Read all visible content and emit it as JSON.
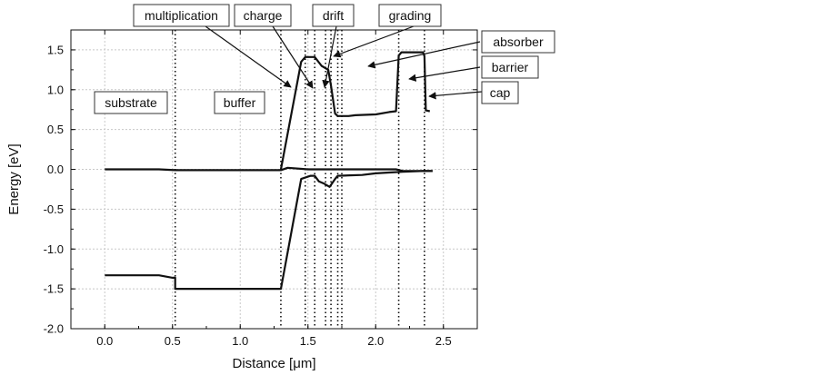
{
  "chart_data": {
    "type": "line",
    "xlabel": "Distance [μm]",
    "ylabel": "Energy [eV]",
    "xlim": [
      -0.25,
      2.75
    ],
    "ylim": [
      -2.0,
      1.75
    ],
    "grid": true,
    "x_ticks": [
      {
        "value": 0.0,
        "label": "0.0"
      },
      {
        "value": 0.5,
        "label": "0.5"
      },
      {
        "value": 1.0,
        "label": "1.0"
      },
      {
        "value": 1.5,
        "label": "1.5"
      },
      {
        "value": 2.0,
        "label": "2.0"
      },
      {
        "value": 2.5,
        "label": "2.5"
      }
    ],
    "y_ticks": [
      {
        "value": 1.5,
        "label": "1.5"
      },
      {
        "value": 1.0,
        "label": "1.0"
      },
      {
        "value": 0.5,
        "label": "0.5"
      },
      {
        "value": 0.0,
        "label": "0.0"
      },
      {
        "value": -0.5,
        "label": "-0.5"
      },
      {
        "value": -1.0,
        "label": "-1.0"
      },
      {
        "value": -1.5,
        "label": "-1.5"
      },
      {
        "value": -2.0,
        "label": "-2.0"
      }
    ],
    "series": [
      {
        "points": [
          [
            0.0,
            -1.33
          ],
          [
            0.4,
            -1.33
          ],
          [
            0.5,
            -1.36
          ],
          [
            0.52,
            -1.36
          ],
          [
            0.52,
            -1.5
          ],
          [
            1.3,
            -1.5
          ],
          [
            1.45,
            -0.12
          ],
          [
            1.52,
            -0.08
          ],
          [
            1.55,
            -0.08
          ],
          [
            1.58,
            -0.15
          ],
          [
            1.62,
            -0.18
          ],
          [
            1.66,
            -0.22
          ],
          [
            1.7,
            -0.12
          ],
          [
            1.72,
            -0.08
          ],
          [
            1.9,
            -0.07
          ],
          [
            2.0,
            -0.05
          ],
          [
            2.1,
            -0.04
          ],
          [
            2.2,
            -0.03
          ],
          [
            2.35,
            -0.02
          ],
          [
            2.42,
            -0.02
          ]
        ]
      },
      {
        "points": [
          [
            0.0,
            0.0
          ],
          [
            0.4,
            0.0
          ],
          [
            0.52,
            -0.01
          ],
          [
            1.3,
            -0.01
          ],
          [
            1.35,
            0.02
          ],
          [
            1.5,
            0.0
          ],
          [
            1.7,
            0.0
          ],
          [
            2.15,
            0.0
          ],
          [
            2.2,
            -0.02
          ],
          [
            2.42,
            -0.02
          ]
        ]
      },
      {
        "points": [
          [
            1.3,
            0.0
          ],
          [
            1.45,
            1.35
          ],
          [
            1.48,
            1.41
          ],
          [
            1.55,
            1.41
          ],
          [
            1.6,
            1.3
          ],
          [
            1.65,
            1.25
          ],
          [
            1.67,
            1.05
          ],
          [
            1.7,
            0.7
          ],
          [
            1.72,
            0.67
          ],
          [
            1.8,
            0.67
          ],
          [
            1.85,
            0.68
          ],
          [
            2.0,
            0.69
          ],
          [
            2.1,
            0.72
          ],
          [
            2.15,
            0.73
          ],
          [
            2.17,
            1.43
          ],
          [
            2.19,
            1.47
          ],
          [
            2.35,
            1.47
          ],
          [
            2.36,
            1.42
          ],
          [
            2.37,
            0.74
          ],
          [
            2.4,
            0.73
          ]
        ]
      }
    ],
    "vlines": [
      0.52,
      1.3,
      1.48,
      1.55,
      1.63,
      1.67,
      1.72,
      1.75,
      2.17,
      2.36
    ],
    "annotations": [
      {
        "text": "substrate"
      },
      {
        "text": "buffer"
      },
      {
        "text": "multiplication"
      },
      {
        "text": "charge"
      },
      {
        "text": "drift"
      },
      {
        "text": "grading"
      },
      {
        "text": "absorber"
      },
      {
        "text": "barrier"
      },
      {
        "text": "cap"
      }
    ]
  }
}
